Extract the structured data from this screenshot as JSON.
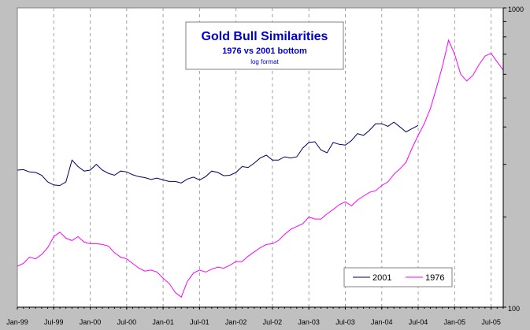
{
  "chart_data": {
    "type": "line",
    "title": "Gold Bull Similarities",
    "subtitle": "1976 vs 2001 bottom",
    "note": "log format",
    "y_scale": "log",
    "ylim": [
      100,
      1000
    ],
    "y_tick_labels": [
      "1000",
      "100"
    ],
    "xlim": [
      "1999-01",
      "2005-09"
    ],
    "x_tick_labels": [
      "Jan-99",
      "Jul-99",
      "Jan-00",
      "Jul-00",
      "Jan-01",
      "Jul-01",
      "Jan-02",
      "Jul-02",
      "Jan-03",
      "Jul-03",
      "Jan-04",
      "Jul-04",
      "Jan-05",
      "Jul-05"
    ],
    "grid": true,
    "legend_position": "bottom-right",
    "series": [
      {
        "name": "2001",
        "color": "#000066",
        "points": [
          [
            "1999-01",
            287
          ],
          [
            "1999-02",
            288
          ],
          [
            "1999-03",
            283
          ],
          [
            "1999-04",
            282
          ],
          [
            "1999-05",
            276
          ],
          [
            "1999-06",
            262
          ],
          [
            "1999-07",
            256
          ],
          [
            "1999-08",
            255
          ],
          [
            "1999-09",
            262
          ],
          [
            "1999-10",
            310
          ],
          [
            "1999-11",
            295
          ],
          [
            "1999-12",
            285
          ],
          [
            "2000-01",
            287
          ],
          [
            "2000-02",
            300
          ],
          [
            "2000-03",
            287
          ],
          [
            "2000-04",
            280
          ],
          [
            "2000-05",
            276
          ],
          [
            "2000-06",
            285
          ],
          [
            "2000-07",
            283
          ],
          [
            "2000-08",
            277
          ],
          [
            "2000-09",
            273
          ],
          [
            "2000-10",
            271
          ],
          [
            "2000-11",
            267
          ],
          [
            "2000-12",
            270
          ],
          [
            "2001-01",
            266
          ],
          [
            "2001-02",
            263
          ],
          [
            "2001-03",
            263
          ],
          [
            "2001-04",
            260
          ],
          [
            "2001-05",
            268
          ],
          [
            "2001-06",
            272
          ],
          [
            "2001-07",
            266
          ],
          [
            "2001-08",
            273
          ],
          [
            "2001-09",
            285
          ],
          [
            "2001-10",
            282
          ],
          [
            "2001-11",
            275
          ],
          [
            "2001-12",
            276
          ],
          [
            "2002-01",
            282
          ],
          [
            "2002-02",
            295
          ],
          [
            "2002-03",
            293
          ],
          [
            "2002-04",
            303
          ],
          [
            "2002-05",
            315
          ],
          [
            "2002-06",
            322
          ],
          [
            "2002-07",
            310
          ],
          [
            "2002-08",
            310
          ],
          [
            "2002-09",
            318
          ],
          [
            "2002-10",
            315
          ],
          [
            "2002-11",
            318
          ],
          [
            "2002-12",
            340
          ],
          [
            "2003-01",
            355
          ],
          [
            "2003-02",
            357
          ],
          [
            "2003-03",
            335
          ],
          [
            "2003-04",
            328
          ],
          [
            "2003-05",
            355
          ],
          [
            "2003-06",
            350
          ],
          [
            "2003-07",
            348
          ],
          [
            "2003-08",
            360
          ],
          [
            "2003-09",
            380
          ],
          [
            "2003-10",
            375
          ],
          [
            "2003-11",
            390
          ],
          [
            "2003-12",
            410
          ],
          [
            "2004-01",
            410
          ],
          [
            "2004-02",
            402
          ],
          [
            "2004-03",
            415
          ],
          [
            "2004-04",
            400
          ],
          [
            "2004-05",
            385
          ],
          [
            "2004-06",
            395
          ],
          [
            "2004-07",
            405
          ]
        ]
      },
      {
        "name": "1976",
        "color": "#ff00ff",
        "points": [
          [
            "1999-01",
            137
          ],
          [
            "1999-02",
            140
          ],
          [
            "1999-03",
            147
          ],
          [
            "1999-04",
            145
          ],
          [
            "1999-05",
            150
          ],
          [
            "1999-06",
            158
          ],
          [
            "1999-07",
            172
          ],
          [
            "1999-08",
            178
          ],
          [
            "1999-09",
            170
          ],
          [
            "1999-10",
            167
          ],
          [
            "1999-11",
            172
          ],
          [
            "1999-12",
            165
          ],
          [
            "2000-01",
            163
          ],
          [
            "2000-02",
            163
          ],
          [
            "2000-03",
            162
          ],
          [
            "2000-04",
            160
          ],
          [
            "2000-05",
            152
          ],
          [
            "2000-06",
            147
          ],
          [
            "2000-07",
            145
          ],
          [
            "2000-08",
            140
          ],
          [
            "2000-09",
            135
          ],
          [
            "2000-10",
            132
          ],
          [
            "2000-11",
            133
          ],
          [
            "2000-12",
            131
          ],
          [
            "2001-01",
            125
          ],
          [
            "2001-02",
            120
          ],
          [
            "2001-03",
            112
          ],
          [
            "2001-04",
            108
          ],
          [
            "2001-05",
            122
          ],
          [
            "2001-06",
            130
          ],
          [
            "2001-07",
            133
          ],
          [
            "2001-08",
            131
          ],
          [
            "2001-09",
            134
          ],
          [
            "2001-10",
            136
          ],
          [
            "2001-11",
            135
          ],
          [
            "2001-12",
            138
          ],
          [
            "2002-01",
            142
          ],
          [
            "2002-02",
            142
          ],
          [
            "2002-03",
            148
          ],
          [
            "2002-04",
            153
          ],
          [
            "2002-05",
            158
          ],
          [
            "2002-06",
            162
          ],
          [
            "2002-07",
            163
          ],
          [
            "2002-08",
            167
          ],
          [
            "2002-09",
            175
          ],
          [
            "2002-10",
            182
          ],
          [
            "2002-11",
            186
          ],
          [
            "2002-12",
            190
          ],
          [
            "2003-01",
            200
          ],
          [
            "2003-02",
            197
          ],
          [
            "2003-03",
            197
          ],
          [
            "2003-04",
            205
          ],
          [
            "2003-05",
            212
          ],
          [
            "2003-06",
            220
          ],
          [
            "2003-07",
            225
          ],
          [
            "2003-08",
            218
          ],
          [
            "2003-09",
            228
          ],
          [
            "2003-10",
            235
          ],
          [
            "2003-11",
            242
          ],
          [
            "2003-12",
            245
          ],
          [
            "2004-01",
            255
          ],
          [
            "2004-02",
            262
          ],
          [
            "2004-03",
            278
          ],
          [
            "2004-04",
            290
          ],
          [
            "2004-05",
            305
          ],
          [
            "2004-06",
            340
          ],
          [
            "2004-07",
            375
          ],
          [
            "2004-08",
            410
          ],
          [
            "2004-09",
            460
          ],
          [
            "2004-10",
            540
          ],
          [
            "2004-11",
            640
          ],
          [
            "2004-12",
            780
          ],
          [
            "2005-01",
            700
          ],
          [
            "2005-02",
            600
          ],
          [
            "2005-03",
            570
          ],
          [
            "2005-04",
            595
          ],
          [
            "2005-05",
            645
          ],
          [
            "2005-06",
            690
          ],
          [
            "2005-07",
            705
          ],
          [
            "2005-08",
            660
          ],
          [
            "2005-09",
            620
          ]
        ]
      }
    ]
  }
}
